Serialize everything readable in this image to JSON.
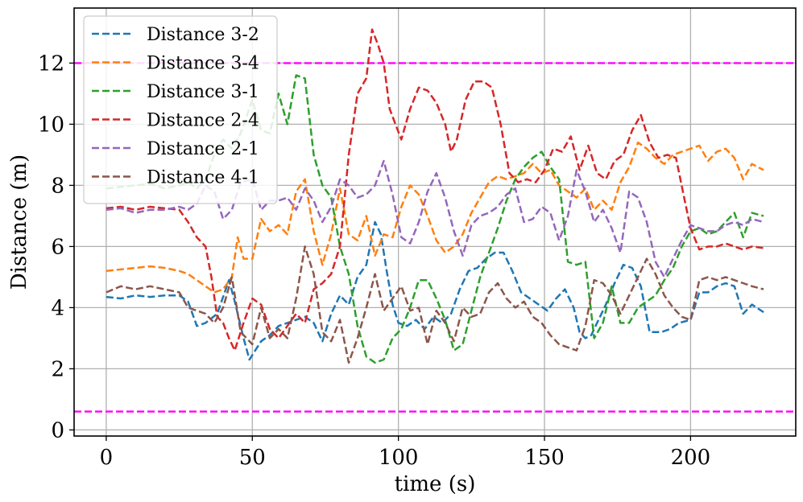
{
  "chart_data": {
    "type": "line",
    "xlabel": "time (s)",
    "ylabel": "Distance (m)",
    "xlim": [
      -11,
      236
    ],
    "ylim": [
      -0.2,
      13.8
    ],
    "xticks": [
      0,
      50,
      100,
      150,
      200
    ],
    "yticks": [
      0,
      2,
      4,
      6,
      8,
      10,
      12
    ],
    "grid": true,
    "legend_position": "top-left",
    "reference_lines": [
      {
        "y": 12.0,
        "color": "#ff00ff"
      },
      {
        "y": 0.6,
        "color": "#ff00ff"
      }
    ],
    "series": [
      {
        "name": "Distance 3-2",
        "color": "#1f77b4",
        "x": [
          0,
          5,
          10,
          15,
          20,
          25,
          28,
          31,
          34,
          38,
          42,
          44,
          47,
          49,
          51,
          53,
          56,
          59,
          62,
          65,
          68,
          71,
          74,
          77,
          80,
          83,
          86,
          89,
          92,
          94,
          96,
          98,
          100,
          103,
          106,
          109,
          112,
          115,
          118,
          121,
          124,
          127,
          130,
          133,
          136,
          139,
          142,
          145,
          148,
          151,
          154,
          157,
          160,
          162,
          164,
          166,
          168,
          171,
          174,
          177,
          180,
          183,
          186,
          190,
          193,
          196,
          200,
          203,
          206,
          209,
          212,
          215,
          218,
          221,
          225
        ],
        "y": [
          4.35,
          4.3,
          4.4,
          4.35,
          4.4,
          4.4,
          4.2,
          3.4,
          3.5,
          3.8,
          4.9,
          4.2,
          3.0,
          2.3,
          2.6,
          2.9,
          3.1,
          3.4,
          3.5,
          3.6,
          3.7,
          3.5,
          2.9,
          3.8,
          4.4,
          4.1,
          5.0,
          5.4,
          6.8,
          6.4,
          5.2,
          4.1,
          3.5,
          3.4,
          3.6,
          3.3,
          3.7,
          3.5,
          3.8,
          4.6,
          5.2,
          5.3,
          5.6,
          5.8,
          5.8,
          5.2,
          4.5,
          4.3,
          4.1,
          3.9,
          4.3,
          4.6,
          4.0,
          3.2,
          3.0,
          3.1,
          3.5,
          4.1,
          4.8,
          5.4,
          5.3,
          4.7,
          3.2,
          3.2,
          3.3,
          3.5,
          3.6,
          4.5,
          4.5,
          4.7,
          4.8,
          4.7,
          3.8,
          4.1,
          3.85
        ]
      },
      {
        "name": "Distance 3-4",
        "color": "#ff7f0e",
        "x": [
          0,
          5,
          10,
          15,
          20,
          25,
          28,
          31,
          34,
          37,
          40,
          43,
          45,
          47,
          50,
          53,
          56,
          59,
          62,
          65,
          68,
          71,
          74,
          77,
          80,
          83,
          86,
          89,
          92,
          95,
          98,
          101,
          104,
          107,
          110,
          113,
          116,
          119,
          122,
          125,
          128,
          131,
          134,
          137,
          140,
          143,
          146,
          149,
          152,
          155,
          158,
          161,
          164,
          167,
          170,
          173,
          176,
          179,
          182,
          185,
          188,
          191,
          194,
          197,
          200,
          203,
          206,
          209,
          212,
          215,
          218,
          221,
          225
        ],
        "y": [
          5.2,
          5.25,
          5.3,
          5.35,
          5.3,
          5.2,
          5.1,
          4.9,
          4.7,
          4.5,
          4.6,
          5.0,
          6.3,
          5.6,
          5.6,
          6.9,
          6.5,
          6.7,
          6.4,
          7.8,
          8.2,
          6.5,
          5.4,
          6.4,
          7.9,
          6.4,
          6.2,
          7.0,
          5.7,
          6.4,
          6.3,
          7.3,
          8.0,
          7.7,
          7.0,
          6.2,
          5.8,
          6.0,
          6.4,
          7.1,
          7.6,
          8.1,
          8.3,
          8.2,
          8.3,
          8.4,
          8.7,
          8.4,
          8.5,
          8.0,
          7.8,
          7.6,
          7.9,
          7.2,
          7.5,
          7.2,
          8.1,
          8.6,
          9.4,
          9.2,
          8.9,
          8.7,
          9.0,
          9.1,
          9.2,
          9.3,
          8.8,
          9.1,
          9.2,
          8.9,
          8.2,
          8.7,
          8.5
        ]
      },
      {
        "name": "Distance 3-1",
        "color": "#2ca02c",
        "x": [
          0,
          5,
          10,
          15,
          20,
          25,
          28,
          31,
          34,
          37,
          40,
          43,
          46,
          50,
          53,
          56,
          59,
          62,
          65,
          68,
          71,
          74,
          77,
          80,
          83,
          86,
          89,
          92,
          95,
          98,
          101,
          104,
          107,
          110,
          113,
          116,
          119,
          122,
          125,
          128,
          131,
          134,
          137,
          140,
          143,
          146,
          149,
          152,
          155,
          158,
          161,
          164,
          167,
          170,
          173,
          176,
          179,
          182,
          185,
          188,
          191,
          194,
          197,
          200,
          203,
          206,
          209,
          212,
          215,
          218,
          221,
          225
        ],
        "y": [
          7.9,
          7.95,
          8.0,
          8.05,
          7.9,
          8.0,
          8.1,
          7.9,
          8.2,
          9.0,
          9.5,
          9.2,
          9.7,
          10.8,
          9.8,
          9.7,
          11.0,
          10.0,
          11.6,
          11.5,
          9.0,
          8.0,
          7.6,
          6.0,
          5.1,
          3.4,
          2.4,
          2.2,
          2.3,
          3.0,
          3.3,
          4.0,
          4.9,
          4.9,
          4.3,
          3.6,
          2.6,
          2.8,
          3.9,
          5.0,
          5.8,
          6.6,
          7.5,
          8.2,
          8.6,
          8.9,
          9.1,
          8.6,
          8.2,
          5.5,
          5.4,
          5.5,
          3.0,
          3.5,
          4.7,
          3.5,
          3.5,
          4.0,
          4.2,
          4.4,
          4.9,
          5.3,
          6.0,
          6.5,
          6.6,
          6.4,
          6.5,
          6.8,
          7.1,
          6.3,
          7.1,
          7.0
        ]
      },
      {
        "name": "Distance 2-4",
        "color": "#d62728",
        "x": [
          0,
          5,
          10,
          15,
          20,
          25,
          28,
          31,
          34,
          36,
          38,
          40,
          42,
          44,
          47,
          50,
          53,
          56,
          59,
          62,
          65,
          68,
          71,
          74,
          77,
          80,
          83,
          86,
          89,
          91,
          93,
          95,
          97,
          99,
          101,
          104,
          107,
          110,
          113,
          116,
          118,
          120,
          123,
          126,
          129,
          132,
          135,
          138,
          141,
          144,
          147,
          150,
          153,
          156,
          159,
          162,
          165,
          168,
          171,
          174,
          177,
          180,
          183,
          186,
          189,
          192,
          195,
          198,
          200,
          203,
          206,
          209,
          212,
          215,
          218,
          221,
          225
        ],
        "y": [
          7.25,
          7.3,
          7.2,
          7.3,
          7.25,
          7.2,
          6.8,
          6.3,
          6.0,
          5.0,
          3.7,
          3.5,
          3.0,
          2.6,
          3.5,
          4.3,
          4.1,
          3.3,
          3.0,
          3.4,
          3.8,
          3.5,
          4.6,
          4.8,
          5.1,
          6.0,
          9.0,
          11.0,
          11.5,
          13.1,
          12.6,
          12.0,
          10.5,
          10.0,
          9.5,
          10.5,
          11.2,
          11.1,
          10.7,
          10.0,
          9.1,
          9.5,
          10.8,
          11.4,
          11.4,
          11.2,
          10.0,
          8.4,
          8.1,
          8.2,
          8.1,
          8.5,
          9.2,
          9.1,
          9.6,
          8.5,
          9.3,
          8.4,
          8.2,
          8.8,
          9.0,
          9.8,
          10.3,
          9.4,
          8.9,
          9.0,
          8.9,
          7.5,
          6.6,
          5.9,
          6.0,
          6.0,
          6.1,
          6.0,
          5.9,
          6.0,
          5.95
        ]
      },
      {
        "name": "Distance 2-1",
        "color": "#9467bd",
        "x": [
          0,
          5,
          10,
          15,
          20,
          25,
          28,
          31,
          34,
          37,
          40,
          43,
          46,
          50,
          53,
          56,
          59,
          62,
          65,
          68,
          71,
          74,
          77,
          80,
          83,
          86,
          89,
          92,
          95,
          98,
          101,
          104,
          107,
          110,
          113,
          116,
          119,
          122,
          125,
          128,
          131,
          134,
          137,
          140,
          143,
          146,
          149,
          152,
          155,
          158,
          161,
          164,
          167,
          170,
          173,
          176,
          179,
          182,
          185,
          188,
          191,
          194,
          197,
          200,
          203,
          206,
          209,
          212,
          215,
          218,
          221,
          225
        ],
        "y": [
          7.2,
          7.25,
          7.1,
          7.2,
          7.2,
          7.3,
          7.2,
          7.4,
          8.0,
          7.8,
          6.9,
          7.2,
          8.1,
          8.2,
          7.2,
          7.5,
          7.5,
          7.6,
          7.2,
          7.9,
          7.5,
          6.8,
          7.3,
          8.2,
          8.0,
          7.6,
          7.7,
          8.0,
          8.8,
          7.7,
          6.3,
          6.1,
          6.8,
          7.8,
          8.4,
          7.6,
          6.5,
          5.7,
          6.7,
          7.0,
          7.1,
          7.3,
          7.7,
          7.9,
          6.8,
          6.9,
          7.3,
          7.1,
          6.2,
          7.0,
          8.5,
          7.8,
          6.8,
          7.2,
          6.6,
          5.8,
          7.8,
          7.6,
          6.8,
          5.5,
          5.0,
          5.6,
          6.2,
          6.7,
          6.6,
          6.5,
          6.5,
          6.7,
          6.8,
          6.7,
          6.9,
          6.8
        ]
      },
      {
        "name": "Distance 4-1",
        "color": "#8c564b",
        "x": [
          0,
          5,
          10,
          15,
          20,
          25,
          28,
          31,
          34,
          37,
          40,
          43,
          46,
          50,
          53,
          56,
          59,
          62,
          65,
          68,
          71,
          74,
          77,
          80,
          83,
          86,
          89,
          92,
          95,
          98,
          101,
          104,
          107,
          110,
          113,
          116,
          119,
          122,
          125,
          128,
          131,
          134,
          137,
          140,
          143,
          146,
          149,
          152,
          155,
          158,
          161,
          164,
          167,
          170,
          173,
          176,
          179,
          182,
          185,
          188,
          191,
          194,
          197,
          200,
          203,
          206,
          209,
          212,
          215,
          218,
          221,
          225
        ],
        "y": [
          4.5,
          4.7,
          4.6,
          4.7,
          4.6,
          4.5,
          4.0,
          3.9,
          3.8,
          3.5,
          4.0,
          5.0,
          3.2,
          2.8,
          4.0,
          3.0,
          3.3,
          3.0,
          4.3,
          6.0,
          5.1,
          3.2,
          2.9,
          3.6,
          2.2,
          3.0,
          4.0,
          5.1,
          3.9,
          4.3,
          4.7,
          3.9,
          4.0,
          2.8,
          3.9,
          3.5,
          2.9,
          4.0,
          3.7,
          3.8,
          4.5,
          4.8,
          4.3,
          4.0,
          4.2,
          3.7,
          3.5,
          3.1,
          2.8,
          2.7,
          2.6,
          3.4,
          4.9,
          4.8,
          4.4,
          3.8,
          4.4,
          5.0,
          5.6,
          5.1,
          4.4,
          4.0,
          3.7,
          3.6,
          4.9,
          5.0,
          4.9,
          5.0,
          4.9,
          4.8,
          4.7,
          4.6
        ]
      }
    ]
  }
}
